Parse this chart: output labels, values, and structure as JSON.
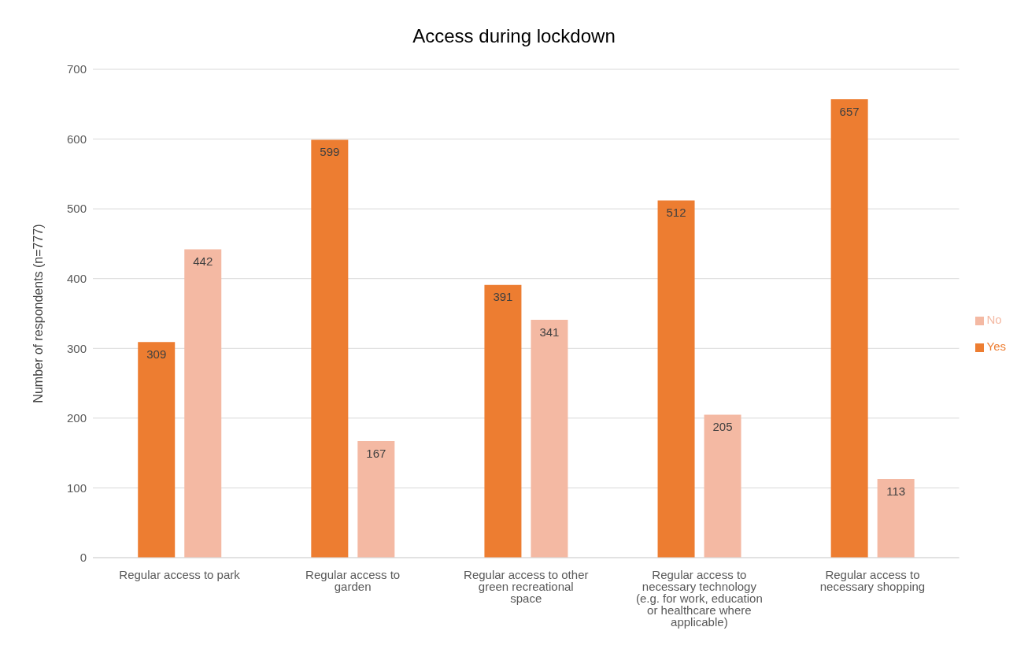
{
  "chart_data": {
    "type": "bar",
    "title": "Access during lockdown",
    "ylabel": "Number of respondents (n=777)",
    "categories": [
      "Regular access to park",
      "Regular access to garden",
      "Regular access to other green recreational space",
      "Regular access to necessary technology (e.g. for work, education or healthcare where applicable)",
      "Regular access to necessary shopping"
    ],
    "series": [
      {
        "name": "Yes",
        "color": "#ed7d31",
        "values": [
          309,
          599,
          391,
          512,
          657
        ]
      },
      {
        "name": "No",
        "color": "#f4b9a3",
        "values": [
          442,
          167,
          341,
          205,
          113
        ]
      }
    ],
    "ylim": [
      0,
      700
    ],
    "yticks": [
      0,
      100,
      200,
      300,
      400,
      500,
      600,
      700
    ],
    "grid": "y",
    "legend": "right",
    "data_labels": true
  }
}
